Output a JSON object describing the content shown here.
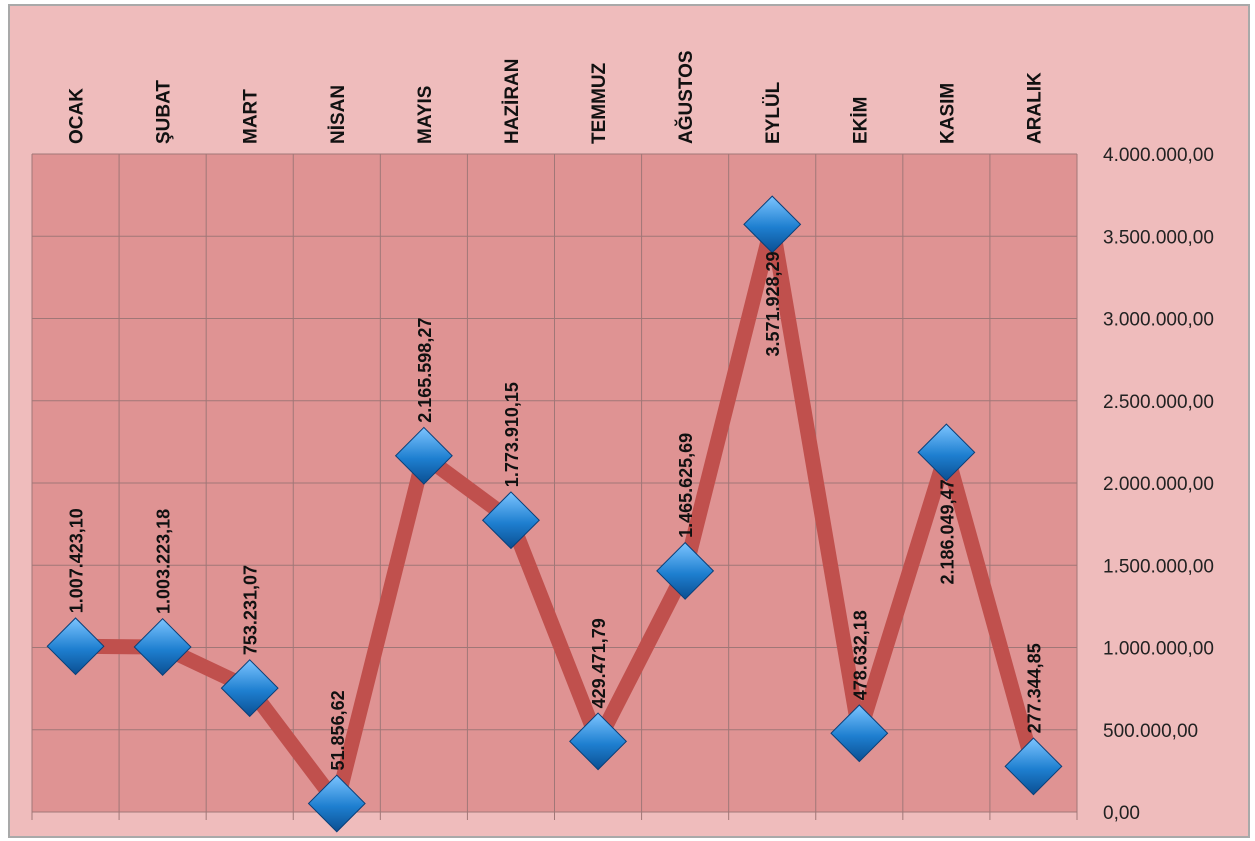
{
  "chart_data": {
    "type": "line",
    "categories": [
      "OCAK",
      "ŞUBAT",
      "MART",
      "NİSAN",
      "MAYIS",
      "HAZİRAN",
      "TEMMUZ",
      "AĞUSTOS",
      "EYLÜL",
      "EKİM",
      "KASIM",
      "ARALIK"
    ],
    "series": [
      {
        "values": [
          1007423.1,
          1003223.18,
          753231.07,
          51856.62,
          2165598.27,
          1773910.15,
          429471.79,
          1465625.69,
          3571928.29,
          478632.18,
          2186049.47,
          277344.85
        ],
        "data_labels": [
          "1.007.423,10",
          "1.003.223,18",
          "753.231,07",
          "51.856,62",
          "2.165.598,27",
          "1.773.910,15",
          "429.471,79",
          "1.465.625,69",
          "3.571.928,29",
          "478.632,18",
          "2.186.049,47",
          "277.344,85"
        ]
      }
    ],
    "ylim": [
      0,
      4000000
    ],
    "y_ticks": [
      0,
      500000,
      1000000,
      1500000,
      2000000,
      2500000,
      3000000,
      3500000,
      4000000
    ],
    "y_tick_labels": [
      "0,00",
      "500.000,00",
      "1.000.000,00",
      "1.500.000,00",
      "2.000.000,00",
      "2.500.000,00",
      "3.000.000,00",
      "3.500.000,00",
      "4.000.000,00"
    ],
    "x_axis_position": "top",
    "y_axis_position": "right",
    "grid": true,
    "title": "",
    "xlabel": "",
    "ylabel": "",
    "colors": {
      "line": "#c0504d",
      "marker": "#1e7fd0",
      "plot_background": "#df9393",
      "chart_background": "#efbcbc",
      "grid": "#a07777"
    }
  }
}
